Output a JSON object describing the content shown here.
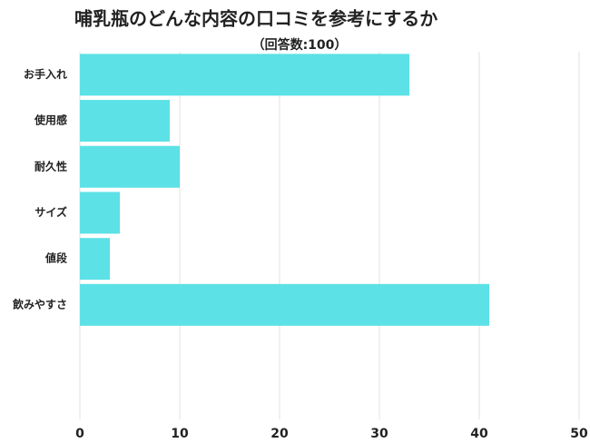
{
  "chart_data": {
    "type": "barh",
    "title": "哺乳瓶のどんな内容の口コミを参考にするか",
    "subtitle": "（回答数:100）",
    "categories": [
      "お手入れ",
      "使用感",
      "耐久性",
      "サイズ",
      "値段",
      "飲みやすさ"
    ],
    "values": [
      33,
      9,
      10,
      4,
      3,
      41
    ],
    "color": "#5ce1e6",
    "xlim": [
      0,
      50
    ],
    "xticks": [
      0,
      10,
      20,
      30,
      40,
      50
    ],
    "grid": true
  }
}
